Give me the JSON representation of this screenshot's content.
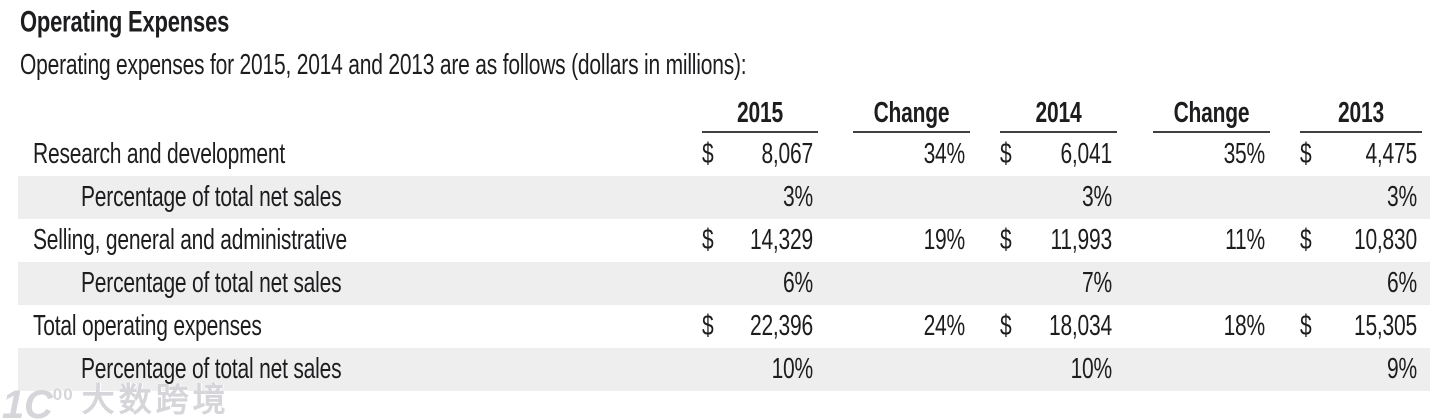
{
  "title": "Operating Expenses",
  "subtitle": "Operating expenses for 2015, 2014 and 2013 are as follows (dollars in millions):",
  "table": {
    "headers": {
      "y2015": "2015",
      "change_a": "Change",
      "y2014": "2014",
      "change_b": "Change",
      "y2013": "2013"
    },
    "rows": [
      {
        "label": "Research and development",
        "d1": "$",
        "v1": "8,067",
        "c1": "34%",
        "d2": "$",
        "v2": "6,041",
        "c2": "35%",
        "d3": "$",
        "v3": "4,475"
      },
      {
        "label": "Percentage of total net sales",
        "d1": "",
        "v1": "3%",
        "c1": "",
        "d2": "",
        "v2": "3%",
        "c2": "",
        "d3": "",
        "v3": "3%"
      },
      {
        "label": "Selling, general and administrative",
        "d1": "$",
        "v1": "14,329",
        "c1": "19%",
        "d2": "$",
        "v2": "11,993",
        "c2": "11%",
        "d3": "$",
        "v3": "10,830"
      },
      {
        "label": "Percentage of total net sales",
        "d1": "",
        "v1": "6%",
        "c1": "",
        "d2": "",
        "v2": "7%",
        "c2": "",
        "d3": "",
        "v3": "6%"
      },
      {
        "label": "Total operating expenses",
        "d1": "$",
        "v1": "22,396",
        "c1": "24%",
        "d2": "$",
        "v2": "18,034",
        "c2": "18%",
        "d3": "$",
        "v3": "15,305"
      },
      {
        "label": "Percentage of total net sales",
        "d1": "",
        "v1": "10%",
        "c1": "",
        "d2": "",
        "v2": "10%",
        "c2": "",
        "d3": "",
        "v3": "9%"
      }
    ]
  },
  "watermark": {
    "logo_main": "1C",
    "logo_sup": "00",
    "text": "大数跨境"
  },
  "colors": {
    "stripe": "#eeeeef",
    "text": "#1d1d1f",
    "header_rule": "#404040",
    "watermark": "#d6d6da"
  }
}
